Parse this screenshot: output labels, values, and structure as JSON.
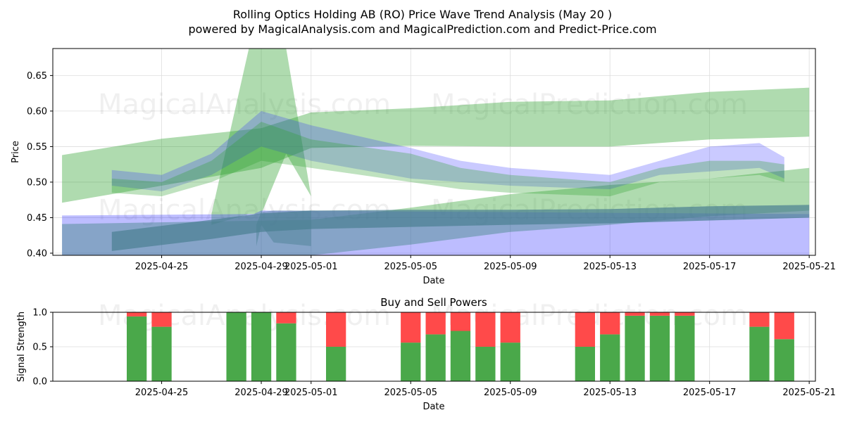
{
  "page": {
    "title": "Rolling Optics Holding AB (RO) Price Wave Trend Analysis (May 20 )",
    "subtitle": "powered by MagicalAnalysis.com and MagicalPrediction.com and Predict-Price.com",
    "watermarks": [
      "MagicalAnalysis.com",
      "MagicalPrediction.com"
    ]
  },
  "chart_data": [
    {
      "type": "area",
      "title": "",
      "xlabel": "Date",
      "ylabel": "Price",
      "xlim": [
        "2025-04-21",
        "2025-05-21"
      ],
      "ylim": [
        0.397,
        0.688
      ],
      "x_ticks": [
        "2025-04-25",
        "2025-04-29",
        "2025-05-01",
        "2025-05-05",
        "2025-05-09",
        "2025-05-13",
        "2025-05-17",
        "2025-05-21"
      ],
      "y_ticks": [
        "0.40",
        "0.45",
        "0.50",
        "0.55",
        "0.60",
        "0.65"
      ],
      "grid": true,
      "colors": {
        "green": "#2ca02c",
        "blue": "#3333ff",
        "teal": "#4a7f91"
      },
      "series": [
        {
          "color": "green",
          "opacity": 0.38,
          "x": [
            "2025-04-21",
            "2025-04-25",
            "2025-04-29",
            "2025-05-01",
            "2025-05-05",
            "2025-05-09",
            "2025-05-13",
            "2025-05-17",
            "2025-05-21"
          ],
          "upper": [
            0.538,
            0.561,
            0.576,
            0.598,
            0.604,
            0.613,
            0.615,
            0.627,
            0.633
          ],
          "lower": [
            0.471,
            0.495,
            0.52,
            0.548,
            0.551,
            0.55,
            0.55,
            0.56,
            0.564
          ]
        },
        {
          "color": "green",
          "opacity": 0.38,
          "x": [
            "2025-04-27",
            "2025-04-28.5",
            "2025-04-29",
            "2025-04-30",
            "2025-05-01"
          ],
          "upper": [
            0.455,
            0.688,
            0.688,
            0.688,
            0.48
          ],
          "lower": [
            0.44,
            0.455,
            0.455,
            0.54,
            0.48
          ]
        },
        {
          "color": "green",
          "opacity": 0.38,
          "x": [
            "2025-04-21",
            "2025-05-01",
            "2025-05-05",
            "2025-05-09",
            "2025-05-13",
            "2025-05-17",
            "2025-05-21"
          ],
          "upper": [
            0.441,
            0.447,
            0.464,
            0.483,
            0.496,
            0.505,
            0.52
          ],
          "lower": [
            0.397,
            0.397,
            0.412,
            0.43,
            0.44,
            0.452,
            0.46
          ]
        },
        {
          "color": "blue",
          "opacity": 0.32,
          "x": [
            "2025-04-21",
            "2025-04-28.7",
            "2025-04-29",
            "2025-05-21"
          ],
          "upper": [
            0.453,
            0.455,
            0.46,
            0.455
          ],
          "lower": [
            0.397,
            0.397,
            0.397,
            0.397
          ]
        },
        {
          "color": "blue",
          "opacity": 0.26,
          "x": [
            "2025-04-23",
            "2025-04-25",
            "2025-04-27",
            "2025-04-29",
            "2025-05-01",
            "2025-05-05",
            "2025-05-07",
            "2025-05-09",
            "2025-05-13",
            "2025-05-15",
            "2025-05-17",
            "2025-05-19",
            "2025-05-20"
          ],
          "upper": [
            0.517,
            0.51,
            0.54,
            0.6,
            0.58,
            0.548,
            0.53,
            0.52,
            0.51,
            0.53,
            0.55,
            0.555,
            0.535
          ],
          "lower": [
            0.495,
            0.487,
            0.51,
            0.55,
            0.53,
            0.505,
            0.5,
            0.495,
            0.49,
            0.51,
            0.515,
            0.52,
            0.505
          ]
        },
        {
          "color": "green",
          "opacity": 0.3,
          "x": [
            "2025-04-23",
            "2025-04-25",
            "2025-04-27",
            "2025-04-29",
            "2025-05-01",
            "2025-05-05",
            "2025-05-07",
            "2025-05-09",
            "2025-05-13",
            "2025-05-15",
            "2025-05-17",
            "2025-05-19",
            "2025-05-20"
          ],
          "upper": [
            0.505,
            0.5,
            0.53,
            0.585,
            0.56,
            0.54,
            0.52,
            0.51,
            0.5,
            0.52,
            0.53,
            0.53,
            0.525
          ],
          "lower": [
            0.485,
            0.48,
            0.5,
            0.53,
            0.52,
            0.5,
            0.49,
            0.485,
            0.48,
            0.5,
            0.505,
            0.51,
            0.5
          ]
        },
        {
          "color": "teal",
          "opacity": 0.7,
          "x": [
            "2025-04-23",
            "2025-04-27",
            "2025-04-29",
            "2025-05-01",
            "2025-05-05",
            "2025-05-09",
            "2025-05-13",
            "2025-05-17",
            "2025-05-21"
          ],
          "upper": [
            0.43,
            0.447,
            0.456,
            0.46,
            0.461,
            0.461,
            0.462,
            0.466,
            0.468
          ],
          "lower": [
            0.403,
            0.42,
            0.43,
            0.434,
            0.437,
            0.44,
            0.442,
            0.446,
            0.45
          ]
        },
        {
          "color": "teal",
          "opacity": 0.45,
          "x": [
            "2025-04-28.8",
            "2025-04-29",
            "2025-04-29.5",
            "2025-05-01"
          ],
          "upper": [
            0.44,
            0.458,
            0.46,
            0.46
          ],
          "lower": [
            0.41,
            0.44,
            0.415,
            0.41
          ]
        }
      ]
    },
    {
      "type": "bar",
      "title": "Buy and Sell Powers",
      "xlabel": "Date",
      "ylabel": "Signal Strength",
      "xlim": [
        "2025-04-21",
        "2025-05-21"
      ],
      "ylim": [
        0.0,
        1.0
      ],
      "x_ticks": [
        "2025-04-25",
        "2025-04-29",
        "2025-05-01",
        "2025-05-05",
        "2025-05-09",
        "2025-05-13",
        "2025-05-17",
        "2025-05-21"
      ],
      "y_ticks": [
        "0.0",
        "0.5",
        "1.0"
      ],
      "grid": true,
      "colors": {
        "buy": "#4aa84a",
        "sell": "#ff4a4a"
      },
      "categories": [
        "2025-04-24",
        "2025-04-25",
        "2025-04-28",
        "2025-04-29",
        "2025-04-30",
        "2025-05-02",
        "2025-05-05",
        "2025-05-06",
        "2025-05-07",
        "2025-05-08",
        "2025-05-09",
        "2025-05-12",
        "2025-05-13",
        "2025-05-14",
        "2025-05-15",
        "2025-05-16",
        "2025-05-19",
        "2025-05-20"
      ],
      "series": [
        {
          "values": [
            0.94,
            0.79,
            1.0,
            1.0,
            0.84,
            0.5,
            0.56,
            0.68,
            0.73,
            0.5,
            0.56,
            0.5,
            0.68,
            0.95,
            0.95,
            0.95,
            0.79,
            0.61
          ]
        },
        {
          "values": [
            0.06,
            0.21,
            0.0,
            0.0,
            0.16,
            0.5,
            0.44,
            0.32,
            0.27,
            0.5,
            0.44,
            0.5,
            0.32,
            0.05,
            0.05,
            0.05,
            0.21,
            0.39
          ]
        }
      ]
    }
  ]
}
